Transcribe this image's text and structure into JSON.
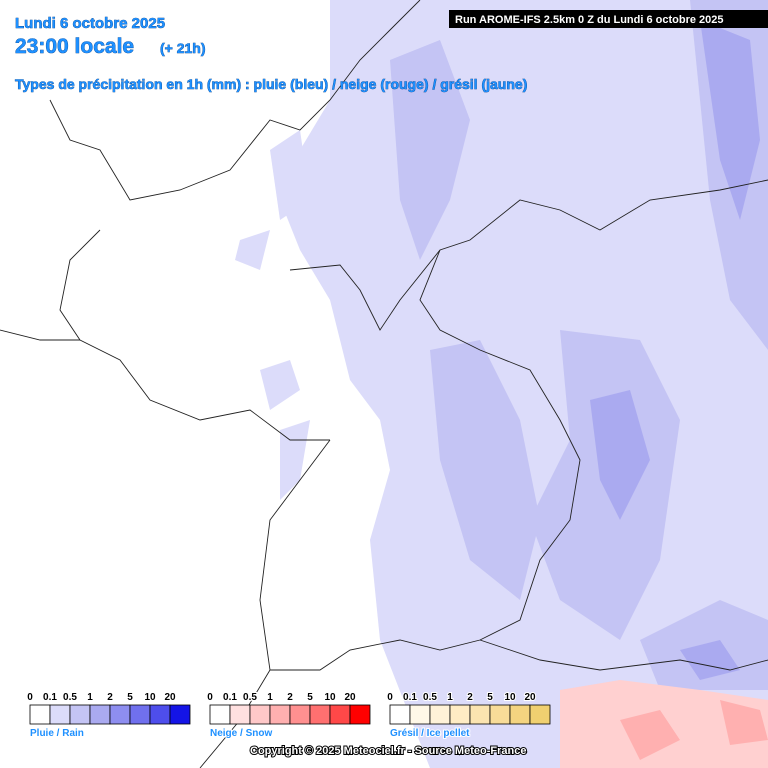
{
  "header": {
    "date": "Lundi 6 octobre 2025",
    "time": "23:00 locale",
    "offset": "(+ 21h)",
    "subtitle": "Types de précipitation en 1h (mm) : pluie (bleu) / neige (rouge) / grésil (jaune)",
    "run": "Run AROME-IFS 2.5km 0 Z du Lundi 6 octobre 2025"
  },
  "legends": [
    {
      "label": "Pluie / Rain",
      "ticks": [
        "0",
        "0.1",
        "0.5",
        "1",
        "2",
        "5",
        "10",
        "20"
      ],
      "colors": [
        "#ffffff",
        "#dcdcfa",
        "#c4c4f4",
        "#aaaaf0",
        "#8e8ef0",
        "#7070ee",
        "#4e4eec",
        "#1414e6"
      ]
    },
    {
      "label": "Neige / Snow",
      "ticks": [
        "0",
        "0.1",
        "0.5",
        "1",
        "2",
        "5",
        "10",
        "20"
      ],
      "colors": [
        "#ffffff",
        "#ffe0e0",
        "#ffc8c8",
        "#ffb0b0",
        "#ff9090",
        "#ff7070",
        "#ff4848",
        "#ff0000"
      ]
    },
    {
      "label": "Grésil / Ice pellet",
      "ticks": [
        "0",
        "0.1",
        "0.5",
        "1",
        "2",
        "5",
        "10",
        "20"
      ],
      "colors": [
        "#ffffff",
        "#fff8e8",
        "#fff2d8",
        "#ffecc4",
        "#fbe4b0",
        "#f8dc98",
        "#f4d480",
        "#f0d070"
      ]
    }
  ],
  "footer": "Copyright © 2025 Meteociel.fr - Source Meteo-France"
}
